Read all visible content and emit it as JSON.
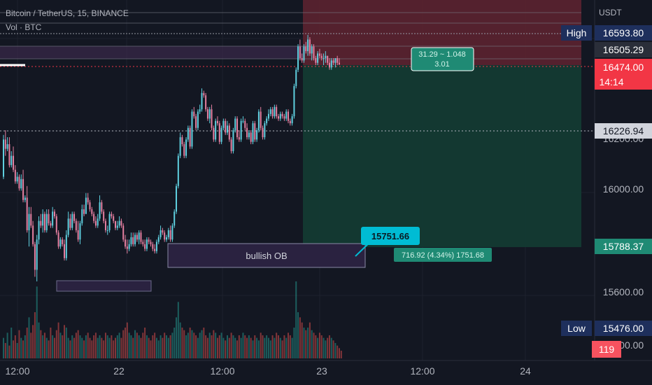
{
  "header": {
    "symbol_line": "Bitcoin / TetherUS, 15, BINANCE",
    "volume_line": "Vol · BTC"
  },
  "price_axis": {
    "currency": "USDT",
    "ticks": [
      "16200.00",
      "16000.00",
      "15600.00",
      "15200.00"
    ]
  },
  "badges": {
    "high": {
      "label": "High",
      "value": "16593.80"
    },
    "level_1": "16505.29",
    "last_price": "16474.00",
    "countdown": "14:14",
    "level_2": "16226.94",
    "target": "15788.37",
    "low": {
      "label": "Low",
      "value": "15476.00"
    },
    "volume": "119"
  },
  "time_axis": {
    "ticks": [
      "12:00",
      "22",
      "12:00",
      "23",
      "12:00",
      "24"
    ]
  },
  "annotations": {
    "bullish_ob": "bullish OB",
    "price_callout": "15751.66",
    "risk_box_line1": "31.29 ~ 1.048",
    "risk_box_line2": "3.01",
    "reward_label": "716.92 (4.34%) 1751.68"
  },
  "colors": {
    "background": "#131722",
    "bull": "#26a69a",
    "bear": "#ef5350",
    "bull_candle": "#5fd0e0",
    "bear_candle": "#e57fa0",
    "risk_zone": "#5c2230",
    "reward_zone": "#133a33",
    "callout": "#00bcd4",
    "axis_badge_navy": "#1e2f5c",
    "last_price_badge": "#f23645"
  },
  "chart_data": {
    "type": "candlestick",
    "series": [
      {
        "name": "",
        "o": [
          15990,
          16150,
          16110,
          16130,
          16040,
          16080,
          16020,
          15970,
          15990,
          15940,
          15980,
          15890,
          15900,
          15760,
          15830,
          15780,
          15700,
          15590,
          15720,
          15800,
          15780,
          15830,
          15760,
          15830,
          15790,
          15780,
          15840,
          15820,
          15750,
          15690,
          15720,
          15700,
          15640,
          15740,
          15810,
          15770,
          15830,
          15800,
          15760,
          15720,
          15790,
          15850,
          15830,
          15900,
          15880,
          15850,
          15830,
          15800,
          15780,
          15810,
          15880,
          15840,
          15800,
          15760,
          15760,
          15830,
          15820,
          15800,
          15770,
          15780,
          15800,
          15780,
          15720,
          15690,
          15680,
          15700,
          15730,
          15700,
          15740,
          15720,
          15750,
          15710,
          15700,
          15680,
          15720,
          15710,
          15700,
          15680,
          15670,
          15710,
          15730,
          15760,
          15750,
          15720,
          15730,
          15760,
          15720,
          15780,
          15840,
          15950,
          16080,
          16160,
          16130,
          16080,
          16150,
          16200,
          16120,
          16270,
          16250,
          16200,
          16270,
          16280,
          16350,
          16340,
          16280,
          16240,
          16280,
          16200,
          16150,
          16230,
          16220,
          16140,
          16200,
          16230,
          16180,
          16210,
          16150,
          16100,
          16190,
          16240,
          16160,
          16150,
          16230,
          16230,
          16200,
          16160,
          16180,
          16140,
          16220,
          16150,
          16190,
          16270,
          16200,
          16160,
          16220,
          16240,
          16260,
          16280,
          16250,
          16290,
          16250,
          16240,
          16260,
          16250,
          16240,
          16270,
          16230,
          16220,
          16250,
          16380,
          16450,
          16550,
          16500,
          16490,
          16550,
          16530,
          16580,
          16520,
          16550,
          16500,
          16480,
          16520,
          16510,
          16500,
          16500,
          16510,
          16480,
          16460,
          16490,
          16480,
          16500,
          16480
        ],
        "h": [
          16170,
          16190,
          16160,
          16160,
          16100,
          16120,
          16040,
          16010,
          16000,
          16000,
          16020,
          15910,
          15950,
          15860,
          15860,
          15800,
          15710,
          15740,
          15820,
          15830,
          15850,
          15840,
          15850,
          15850,
          15800,
          15860,
          15850,
          15830,
          15760,
          15730,
          15730,
          15720,
          15760,
          15840,
          15830,
          15840,
          15840,
          15810,
          15800,
          15800,
          15870,
          15870,
          15920,
          15920,
          15890,
          15860,
          15840,
          15820,
          15830,
          15910,
          15890,
          15850,
          15810,
          15780,
          15840,
          15840,
          15830,
          15800,
          15800,
          15820,
          15810,
          15790,
          15740,
          15720,
          15720,
          15750,
          15750,
          15750,
          15750,
          15760,
          15760,
          15720,
          15720,
          15730,
          15730,
          15720,
          15710,
          15700,
          15720,
          15740,
          15780,
          15770,
          15760,
          15740,
          15770,
          15780,
          15790,
          15850,
          15960,
          16090,
          16180,
          16170,
          16140,
          16160,
          16210,
          16210,
          16280,
          16290,
          16260,
          16280,
          16300,
          16370,
          16360,
          16350,
          16290,
          16290,
          16300,
          16210,
          16240,
          16250,
          16230,
          16210,
          16240,
          16240,
          16230,
          16220,
          16160,
          16200,
          16250,
          16250,
          16190,
          16240,
          16250,
          16240,
          16220,
          16190,
          16190,
          16230,
          16230,
          16200,
          16280,
          16290,
          16210,
          16230,
          16250,
          16280,
          16290,
          16290,
          16300,
          16300,
          16260,
          16270,
          16270,
          16260,
          16280,
          16280,
          16240,
          16260,
          16390,
          16460,
          16560,
          16580,
          16520,
          16560,
          16570,
          16600,
          16590,
          16560,
          16560,
          16510,
          16530,
          16540,
          16520,
          16520,
          16530,
          16510,
          16500,
          16500,
          16500,
          16500,
          16510,
          16500
        ],
        "l": [
          15980,
          16080,
          16100,
          16030,
          16030,
          16010,
          15960,
          15960,
          15930,
          15930,
          15880,
          15880,
          15750,
          15690,
          15770,
          15690,
          15560,
          15540,
          15700,
          15770,
          15750,
          15750,
          15750,
          15780,
          15770,
          15770,
          15810,
          15740,
          15680,
          15680,
          15690,
          15630,
          15630,
          15730,
          15760,
          15760,
          15790,
          15750,
          15710,
          15700,
          15780,
          15820,
          15830,
          15870,
          15840,
          15820,
          15790,
          15770,
          15770,
          15800,
          15830,
          15790,
          15750,
          15740,
          15750,
          15810,
          15790,
          15760,
          15760,
          15770,
          15770,
          15710,
          15680,
          15660,
          15670,
          15690,
          15690,
          15690,
          15710,
          15700,
          15700,
          15690,
          15670,
          15670,
          15700,
          15690,
          15670,
          15660,
          15660,
          15700,
          15720,
          15740,
          15710,
          15710,
          15720,
          15710,
          15710,
          15770,
          15830,
          15940,
          16070,
          16120,
          16070,
          16070,
          16140,
          16110,
          16110,
          16240,
          16190,
          16190,
          16260,
          16270,
          16330,
          16270,
          16230,
          16220,
          16190,
          16140,
          16140,
          16210,
          16130,
          16130,
          16190,
          16170,
          16170,
          16140,
          16090,
          16090,
          16180,
          16150,
          16140,
          16140,
          16220,
          16190,
          16150,
          16150,
          16130,
          16130,
          16140,
          16140,
          16180,
          16190,
          16150,
          16150,
          16210,
          16230,
          16250,
          16240,
          16240,
          16240,
          16230,
          16230,
          16240,
          16230,
          16230,
          16220,
          16210,
          16210,
          16240,
          16370,
          16440,
          16490,
          16480,
          16480,
          16520,
          16510,
          16510,
          16490,
          16490,
          16470,
          16470,
          16500,
          16490,
          16470,
          16480,
          16470,
          16450,
          16450,
          16470,
          16460,
          16470,
          16470
        ],
        "c": [
          16150,
          16110,
          16130,
          16040,
          16080,
          16020,
          15970,
          15990,
          15940,
          15980,
          15890,
          15900,
          15760,
          15830,
          15780,
          15700,
          15590,
          15720,
          15800,
          15780,
          15830,
          15760,
          15830,
          15790,
          15780,
          15840,
          15820,
          15750,
          15690,
          15720,
          15700,
          15640,
          15740,
          15810,
          15770,
          15830,
          15800,
          15760,
          15720,
          15790,
          15850,
          15830,
          15900,
          15880,
          15850,
          15830,
          15800,
          15780,
          15810,
          15880,
          15840,
          15800,
          15760,
          15760,
          15830,
          15820,
          15800,
          15770,
          15780,
          15800,
          15780,
          15720,
          15690,
          15680,
          15700,
          15730,
          15700,
          15740,
          15720,
          15750,
          15710,
          15700,
          15680,
          15720,
          15710,
          15700,
          15680,
          15670,
          15710,
          15730,
          15760,
          15750,
          15720,
          15730,
          15760,
          15720,
          15780,
          15840,
          15950,
          16080,
          16160,
          16130,
          16080,
          16150,
          16200,
          16120,
          16270,
          16250,
          16200,
          16270,
          16280,
          16350,
          16340,
          16280,
          16240,
          16280,
          16200,
          16150,
          16230,
          16220,
          16140,
          16200,
          16230,
          16180,
          16210,
          16150,
          16100,
          16190,
          16240,
          16160,
          16150,
          16230,
          16230,
          16200,
          16160,
          16180,
          16140,
          16220,
          16150,
          16190,
          16270,
          16200,
          16160,
          16220,
          16240,
          16260,
          16280,
          16250,
          16290,
          16250,
          16240,
          16260,
          16250,
          16240,
          16270,
          16230,
          16220,
          16250,
          16380,
          16450,
          16550,
          16500,
          16490,
          16550,
          16530,
          16580,
          16520,
          16550,
          16500,
          16480,
          16520,
          16510,
          16500,
          16500,
          16510,
          16480,
          16460,
          16490,
          16480,
          16500,
          16480,
          16474
        ]
      }
    ],
    "volume": [
      40,
      30,
      50,
      25,
      60,
      35,
      45,
      30,
      55,
      40,
      35,
      45,
      60,
      80,
      50,
      65,
      90,
      140,
      70,
      55,
      45,
      50,
      40,
      35,
      60,
      45,
      40,
      55,
      70,
      50,
      45,
      65,
      60,
      40,
      35,
      45,
      40,
      50,
      55,
      45,
      40,
      35,
      45,
      50,
      40,
      35,
      45,
      50,
      40,
      45,
      40,
      35,
      50,
      45,
      40,
      45,
      35,
      40,
      45,
      50,
      40,
      55,
      60,
      70,
      50,
      45,
      40,
      55,
      50,
      45,
      40,
      50,
      60,
      45,
      40,
      35,
      45,
      50,
      40,
      35,
      45,
      40,
      50,
      45,
      40,
      45,
      50,
      60,
      80,
      110,
      70,
      60,
      55,
      45,
      50,
      60,
      55,
      50,
      45,
      40,
      50,
      55,
      60,
      45,
      40,
      50,
      45,
      55,
      50,
      40,
      45,
      50,
      40,
      35,
      45,
      40,
      50,
      45,
      40,
      35,
      45,
      40,
      50,
      45,
      40,
      45,
      40,
      35,
      45,
      40,
      35,
      50,
      45,
      40,
      45,
      40,
      35,
      45,
      40,
      50,
      45,
      40,
      35,
      45,
      40,
      50,
      45,
      40,
      60,
      150,
      90,
      80,
      70,
      60,
      55,
      60,
      70,
      55,
      50,
      45,
      40,
      50,
      45,
      40,
      35,
      40,
      45,
      40,
      35,
      30,
      25,
      20,
      15
    ],
    "ylim": [
      15200,
      16750
    ],
    "grid": true,
    "annotations": {
      "high": 16593.8,
      "level_1": 16505.29,
      "last": 16474.0,
      "level_2": 16226.94,
      "target": 15788.37,
      "low": 15476.0,
      "callout": 15751.66
    }
  }
}
